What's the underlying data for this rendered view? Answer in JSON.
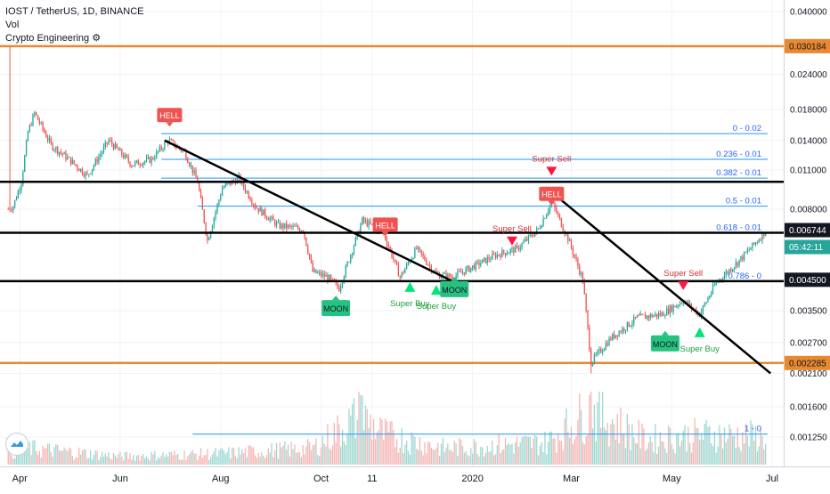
{
  "legend": {
    "title": "IOST / TetherUS, 1D, BINANCE",
    "vol": "Vol",
    "indicator": "Crypto Engineering ⚙"
  },
  "colors": {
    "up": "#26a69a",
    "down": "#ef5350",
    "fib": "#2196f3",
    "fib_label": "#2962ff",
    "orange": "#e8892f",
    "black_line": "#000000",
    "hell": "#ef5350",
    "moon": "#26c281",
    "buy_arrow": "#00e676",
    "sell_arrow": "#ff1744",
    "price_tag_dark": "#131722",
    "price_tag_green": "#26a69a"
  },
  "chart_data": {
    "type": "candlestick",
    "title": "IOST / TetherUS, 1D, BINANCE",
    "x_axis": {
      "labels": [
        "Apr",
        "Jun",
        "Aug",
        "Oct",
        "11",
        "2020",
        "Mar",
        "May",
        "Jul"
      ],
      "range": [
        "2019-03-20",
        "2020-07-08"
      ]
    },
    "y_axis": {
      "scale": "log",
      "ticks": [
        "0.040000",
        "0.030184",
        "0.024000",
        "0.018000",
        "0.014000",
        "0.011000",
        "0.008000",
        "0.006744",
        "0.004500",
        "0.003500",
        "0.002700",
        "0.002285",
        "0.002100",
        "0.001600",
        "0.001250"
      ],
      "highlighted": [
        {
          "label": "0.030184",
          "style": "orange"
        },
        {
          "label": "0.006744",
          "style": "dark"
        },
        {
          "label": "05:42:11",
          "style": "green"
        },
        {
          "label": "0.004500",
          "style": "dark"
        },
        {
          "label": "0.002285",
          "style": "orange"
        }
      ]
    },
    "horizontal_levels": [
      {
        "price": 0.030184,
        "color": "orange"
      },
      {
        "price": 0.002285,
        "color": "orange"
      },
      {
        "price": 0.01,
        "color": "black"
      },
      {
        "price": 0.0066,
        "color": "black"
      },
      {
        "price": 0.00445,
        "color": "black"
      }
    ],
    "fib_levels": [
      {
        "label": "0 - 0.02",
        "price": 0.0148
      },
      {
        "label": "0.236 - 0.01",
        "price": 0.012
      },
      {
        "label": "0.382 - 0.01",
        "price": 0.0103
      },
      {
        "label": "0.5 - 0.01",
        "price": 0.0082
      },
      {
        "label": "0.618 - 0.01",
        "price": 0.0066
      },
      {
        "label": "0.786 - 0",
        "price": 0.00445
      },
      {
        "label": "1 - 0",
        "price": 0.00128
      }
    ],
    "trendlines": [
      {
        "from": [
          "2019-06-28",
          0.014
        ],
        "to": [
          "2019-12-25",
          0.0043
        ]
      },
      {
        "from": [
          "2020-02-18",
          0.0092
        ],
        "to": [
          "2020-06-30",
          0.0021
        ]
      }
    ],
    "signals": [
      {
        "type": "HELL",
        "date": "2019-07-01",
        "price": 0.0171
      },
      {
        "type": "HELL",
        "date": "2019-11-09",
        "price": 0.007
      },
      {
        "type": "HELL",
        "date": "2020-02-18",
        "price": 0.009
      },
      {
        "type": "Super Sell",
        "date": "2020-01-25",
        "price": 0.0064
      },
      {
        "type": "Super Sell",
        "date": "2020-02-18",
        "price": 0.0113
      },
      {
        "type": "Super Sell",
        "date": "2020-05-08",
        "price": 0.00445
      },
      {
        "type": "Super Buy",
        "date": "2019-11-24",
        "price": 0.0042
      },
      {
        "type": "Super Buy",
        "date": "2019-12-10",
        "price": 0.0041
      },
      {
        "type": "Super Buy",
        "date": "2020-05-18",
        "price": 0.0029
      },
      {
        "type": "MOON",
        "date": "2019-10-10",
        "price": 0.0036
      },
      {
        "type": "MOON",
        "date": "2019-12-21",
        "price": 0.0042
      },
      {
        "type": "MOON",
        "date": "2020-04-27",
        "price": 0.0027
      }
    ],
    "countdown": "05:42:11",
    "price_path": [
      {
        "date": "2019-03-25",
        "price": 0.008
      },
      {
        "date": "2019-03-28",
        "price": 0.0082
      },
      {
        "date": "2019-04-02",
        "price": 0.01
      },
      {
        "date": "2019-04-06",
        "price": 0.015
      },
      {
        "date": "2019-04-10",
        "price": 0.0175
      },
      {
        "date": "2019-04-20",
        "price": 0.0135
      },
      {
        "date": "2019-05-01",
        "price": 0.012
      },
      {
        "date": "2019-05-12",
        "price": 0.0105
      },
      {
        "date": "2019-05-25",
        "price": 0.014
      },
      {
        "date": "2019-06-08",
        "price": 0.0115
      },
      {
        "date": "2019-06-20",
        "price": 0.012
      },
      {
        "date": "2019-06-30",
        "price": 0.014
      },
      {
        "date": "2019-07-10",
        "price": 0.0128
      },
      {
        "date": "2019-07-18",
        "price": 0.01
      },
      {
        "date": "2019-07-24",
        "price": 0.0062
      },
      {
        "date": "2019-08-02",
        "price": 0.0095
      },
      {
        "date": "2019-08-12",
        "price": 0.0103
      },
      {
        "date": "2019-08-22",
        "price": 0.0082
      },
      {
        "date": "2019-09-05",
        "price": 0.007
      },
      {
        "date": "2019-09-20",
        "price": 0.0068
      },
      {
        "date": "2019-09-26",
        "price": 0.0048
      },
      {
        "date": "2019-10-05",
        "price": 0.0046
      },
      {
        "date": "2019-10-12",
        "price": 0.0042
      },
      {
        "date": "2019-10-26",
        "price": 0.0073
      },
      {
        "date": "2019-11-08",
        "price": 0.0066
      },
      {
        "date": "2019-11-18",
        "price": 0.0046
      },
      {
        "date": "2019-11-28",
        "price": 0.0058
      },
      {
        "date": "2019-12-10",
        "price": 0.0047
      },
      {
        "date": "2019-12-20",
        "price": 0.0046
      },
      {
        "date": "2020-01-01",
        "price": 0.005
      },
      {
        "date": "2020-01-15",
        "price": 0.0055
      },
      {
        "date": "2020-01-28",
        "price": 0.0058
      },
      {
        "date": "2020-02-10",
        "price": 0.0068
      },
      {
        "date": "2020-02-18",
        "price": 0.0085
      },
      {
        "date": "2020-02-28",
        "price": 0.0063
      },
      {
        "date": "2020-03-08",
        "price": 0.0045
      },
      {
        "date": "2020-03-13",
        "price": 0.0023
      },
      {
        "date": "2020-03-25",
        "price": 0.0028
      },
      {
        "date": "2020-04-10",
        "price": 0.0033
      },
      {
        "date": "2020-04-25",
        "price": 0.0034
      },
      {
        "date": "2020-05-08",
        "price": 0.0038
      },
      {
        "date": "2020-05-18",
        "price": 0.0034
      },
      {
        "date": "2020-05-28",
        "price": 0.0044
      },
      {
        "date": "2020-06-10",
        "price": 0.0052
      },
      {
        "date": "2020-06-20",
        "price": 0.006
      },
      {
        "date": "2020-06-27",
        "price": 0.0067
      }
    ],
    "volume_path": [
      {
        "date": "2019-03-25",
        "value": 0.2
      },
      {
        "date": "2019-04-05",
        "value": 0.3
      },
      {
        "date": "2019-06-01",
        "value": 0.15
      },
      {
        "date": "2019-08-01",
        "value": 0.2
      },
      {
        "date": "2019-09-26",
        "value": 0.3
      },
      {
        "date": "2019-10-25",
        "value": 0.9
      },
      {
        "date": "2019-11-08",
        "value": 0.55
      },
      {
        "date": "2019-12-15",
        "value": 0.3
      },
      {
        "date": "2020-02-15",
        "value": 0.4
      },
      {
        "date": "2020-03-13",
        "value": 1.0
      },
      {
        "date": "2020-04-15",
        "value": 0.45
      },
      {
        "date": "2020-05-20",
        "value": 0.55
      },
      {
        "date": "2020-06-27",
        "value": 0.5
      }
    ]
  }
}
